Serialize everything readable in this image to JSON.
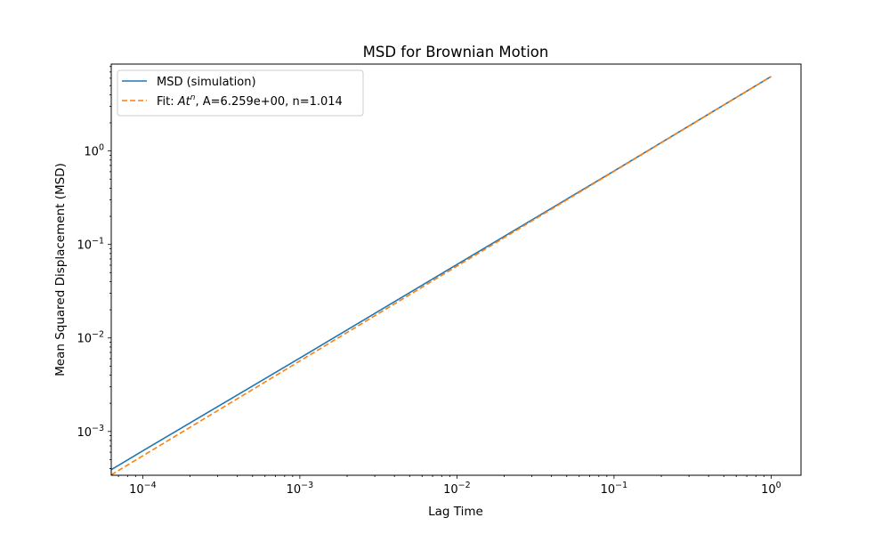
{
  "chart_data": {
    "type": "line",
    "title": "MSD for Brownian Motion",
    "xlabel": "Lag Time",
    "ylabel": "Mean Squared Displacement (MSD)",
    "xscale": "log",
    "yscale": "log",
    "xlim": [
      6.3e-05,
      1.55
    ],
    "ylim": [
      0.00034,
      8.5
    ],
    "grid": false,
    "legend_position": "top-left",
    "x_ticks": [
      {
        "value": 0.0001,
        "base": "10",
        "exp": "−4"
      },
      {
        "value": 0.001,
        "base": "10",
        "exp": "−3"
      },
      {
        "value": 0.01,
        "base": "10",
        "exp": "−2"
      },
      {
        "value": 0.1,
        "base": "10",
        "exp": "−1"
      },
      {
        "value": 1,
        "base": "10",
        "exp": "0"
      }
    ],
    "y_ticks": [
      {
        "value": 0.001,
        "base": "10",
        "exp": "−3"
      },
      {
        "value": 0.01,
        "base": "10",
        "exp": "−2"
      },
      {
        "value": 0.1,
        "base": "10",
        "exp": "−1"
      },
      {
        "value": 1,
        "base": "10",
        "exp": "0"
      }
    ],
    "series": [
      {
        "name": "MSD (simulation)",
        "color": "#1f77b4",
        "dash": "solid",
        "x": [
          6.3e-05,
          0.0001,
          0.001,
          0.01,
          0.1,
          1
        ],
        "y": [
          0.00039,
          0.00062,
          0.0061,
          0.061,
          0.61,
          6.26
        ]
      },
      {
        "name": "Fit: At^n, A=6.259e+00, n=1.014",
        "legend_prefix": "Fit: ",
        "legend_math_base": "At",
        "legend_math_sup": "n",
        "legend_suffix": ", A=6.259e+00, n=1.014",
        "color": "#ff7f0e",
        "dash": "dashed",
        "x": [
          6.3e-05,
          0.0001,
          0.001,
          0.01,
          0.1,
          1
        ],
        "y": [
          0.000343,
          0.000549,
          0.00567,
          0.0586,
          0.605,
          6.259
        ]
      }
    ]
  }
}
